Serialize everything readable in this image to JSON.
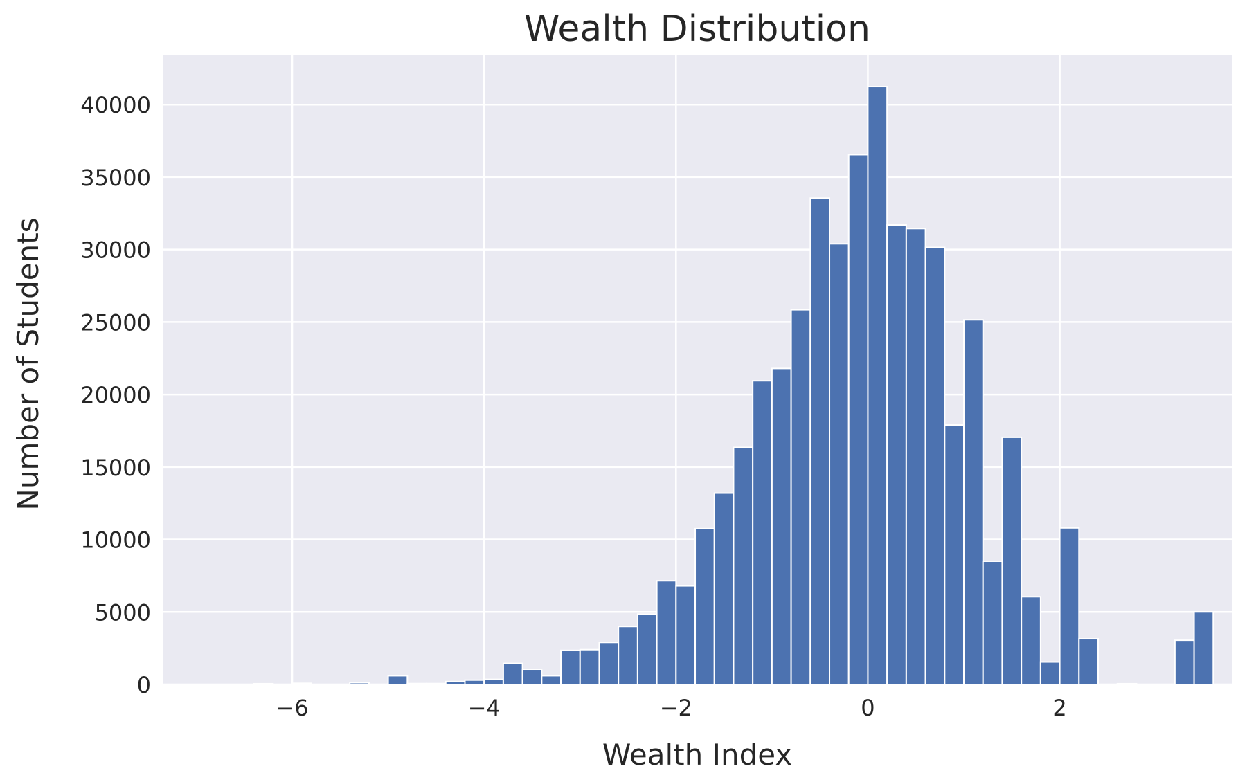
{
  "chart_data": {
    "type": "bar",
    "title": "Wealth Distribution",
    "xlabel": "Wealth Index",
    "ylabel": "Number of Students",
    "xlim": [
      -7.35,
      3.8
    ],
    "ylim": [
      0,
      43400
    ],
    "xticks": [
      -6,
      -4,
      -2,
      0,
      2
    ],
    "xtick_labels": [
      "−6",
      "−4",
      "−2",
      "0",
      "2"
    ],
    "yticks": [
      0,
      5000,
      10000,
      15000,
      20000,
      25000,
      30000,
      35000,
      40000
    ],
    "ytick_labels": [
      "0",
      "5000",
      "10000",
      "15000",
      "20000",
      "25000",
      "30000",
      "35000",
      "40000"
    ],
    "grid": true,
    "bin_start": -6.8,
    "bin_width": 0.2,
    "values": [
      0,
      0,
      50,
      0,
      80,
      0,
      0,
      120,
      0,
      600,
      60,
      60,
      200,
      300,
      350,
      1450,
      1050,
      600,
      2350,
      2400,
      2900,
      4000,
      4850,
      7150,
      6800,
      10750,
      13200,
      16350,
      20950,
      21800,
      25850,
      33550,
      30400,
      36550,
      41250,
      31700,
      31450,
      30150,
      17900,
      25150,
      8500,
      17050,
      6050,
      1550,
      10800,
      3150,
      0,
      50,
      0,
      0,
      3050,
      5000,
      0
    ],
    "colors": {
      "bar": "#4c72b0",
      "plot_bg": "#eaeaf2",
      "grid": "#ffffff",
      "text": "#262626"
    }
  }
}
